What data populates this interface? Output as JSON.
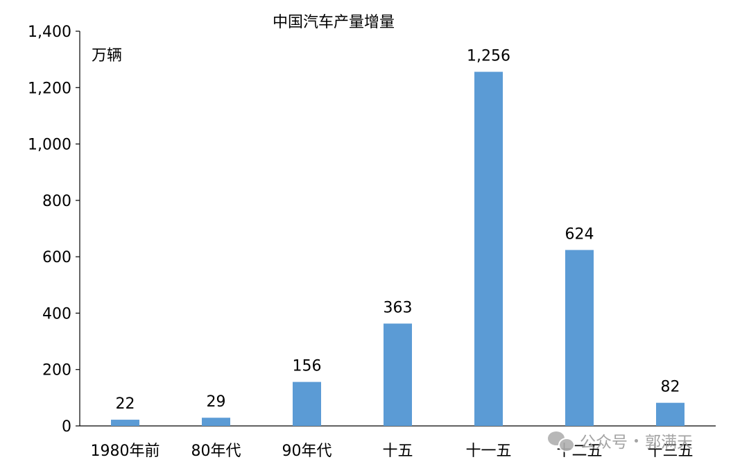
{
  "chart_data": {
    "type": "bar",
    "title": "中国汽车产量增量",
    "unit_label": "万辆",
    "xlabel": "",
    "ylabel": "",
    "categories": [
      "1980年前",
      "80年代",
      "90年代",
      "十五",
      "十一五",
      "十二五",
      "十三五"
    ],
    "values": [
      22,
      29,
      156,
      363,
      1256,
      624,
      82
    ],
    "data_labels": [
      "22",
      "29",
      "156",
      "363",
      "1,256",
      "624",
      "82"
    ],
    "ylim": [
      0,
      1400
    ],
    "yticks": [
      0,
      200,
      400,
      600,
      800,
      1000,
      1200,
      1400
    ],
    "ytick_labels": [
      "0",
      "200",
      "400",
      "600",
      "800",
      "1,000",
      "1,200",
      "1,400"
    ],
    "grid": false,
    "legend": "none",
    "bar_color": "#5b9bd5"
  },
  "watermark": {
    "icon": "wechat-icon",
    "account_label": "公众号",
    "author": "郭满天"
  }
}
